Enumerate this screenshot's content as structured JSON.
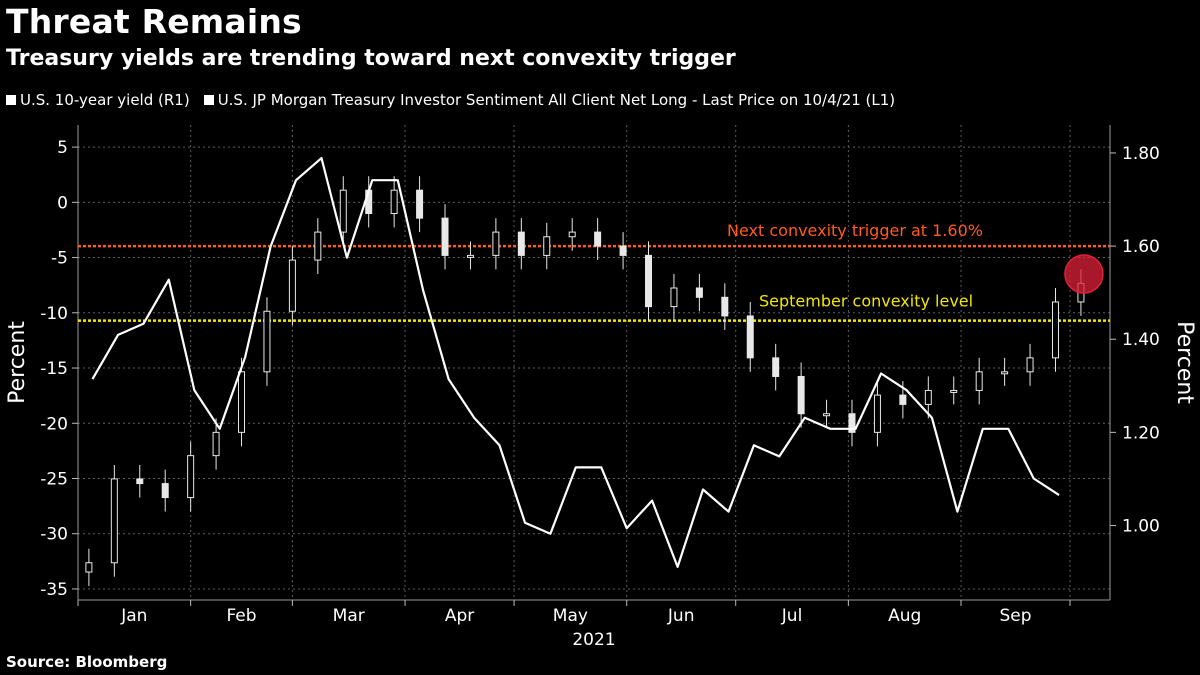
{
  "header": {
    "title": "Threat Remains",
    "subtitle": "Treasury yields are trending toward next convexity trigger"
  },
  "legend": [
    {
      "label": "U.S. 10-year yield (R1)",
      "color": "#ffffff"
    },
    {
      "label": "U.S. JP Morgan Treasury Investor Sentiment All Client Net Long - Last Price on 10/4/21 (L1)",
      "color": "#ffffff"
    }
  ],
  "footer": {
    "source": "Source: Bloomberg"
  },
  "chart_data": {
    "type": "line",
    "xlabel": "2021",
    "x_ticks": [
      "Jan",
      "Feb",
      "Mar",
      "Apr",
      "May",
      "Jun",
      "Jul",
      "Aug",
      "Sep"
    ],
    "left_axis": {
      "label": "Percent",
      "range": [
        -36,
        7
      ],
      "ticks": [
        5,
        0,
        -5,
        -10,
        -15,
        -20,
        -25,
        -30,
        -35
      ]
    },
    "right_axis": {
      "label": "Percent",
      "range": [
        0.84,
        1.86
      ],
      "ticks": [
        "1.80",
        "1.60",
        "1.40",
        "1.20",
        "1.00"
      ]
    },
    "grid": true,
    "legend_position": "top-left",
    "series": [
      {
        "name": "U.S. JP Morgan Treasury Investor Sentiment All Client Net Long - Last Price on 10/4/21 (L1)",
        "style": "line",
        "axis": "left",
        "x": [
          "2021-01-05",
          "2021-01-12",
          "2021-01-19",
          "2021-01-26",
          "2021-02-02",
          "2021-02-09",
          "2021-02-16",
          "2021-02-23",
          "2021-03-02",
          "2021-03-09",
          "2021-03-16",
          "2021-03-23",
          "2021-03-30",
          "2021-04-06",
          "2021-04-13",
          "2021-04-20",
          "2021-04-27",
          "2021-05-04",
          "2021-05-11",
          "2021-05-18",
          "2021-05-25",
          "2021-06-01",
          "2021-06-08",
          "2021-06-15",
          "2021-06-22",
          "2021-06-29",
          "2021-07-06",
          "2021-07-13",
          "2021-07-20",
          "2021-07-27",
          "2021-08-03",
          "2021-08-10",
          "2021-08-17",
          "2021-08-24",
          "2021-08-31",
          "2021-09-07",
          "2021-09-14",
          "2021-09-21",
          "2021-09-28"
        ],
        "values": [
          -16,
          -12,
          -11,
          -7,
          -17,
          -20.5,
          -14,
          -4,
          2,
          4,
          -5,
          2,
          2,
          -8,
          -16,
          -19.5,
          -22,
          -29,
          -30,
          -24,
          -24,
          -29.5,
          -27,
          -33,
          -26,
          -28,
          -22,
          -23,
          -19.5,
          -20.5,
          -20.5,
          -15.5,
          -17,
          -19.5,
          -28,
          -20.5,
          -20.5,
          -25,
          -26.5
        ]
      },
      {
        "name": "U.S. 10-year yield (R1)",
        "style": "candlestick",
        "axis": "right",
        "x": [
          "2021-01-04",
          "2021-01-11",
          "2021-01-18",
          "2021-01-25",
          "2021-02-01",
          "2021-02-08",
          "2021-02-15",
          "2021-02-22",
          "2021-03-01",
          "2021-03-08",
          "2021-03-15",
          "2021-03-22",
          "2021-03-29",
          "2021-04-05",
          "2021-04-12",
          "2021-04-19",
          "2021-04-26",
          "2021-05-03",
          "2021-05-10",
          "2021-05-17",
          "2021-05-24",
          "2021-05-31",
          "2021-06-07",
          "2021-06-14",
          "2021-06-21",
          "2021-06-28",
          "2021-07-05",
          "2021-07-12",
          "2021-07-19",
          "2021-07-26",
          "2021-08-02",
          "2021-08-09",
          "2021-08-16",
          "2021-08-23",
          "2021-08-30",
          "2021-09-06",
          "2021-09-13",
          "2021-09-20",
          "2021-09-27",
          "2021-10-04"
        ],
        "values": [
          0.92,
          1.1,
          1.09,
          1.06,
          1.15,
          1.2,
          1.33,
          1.46,
          1.57,
          1.63,
          1.72,
          1.67,
          1.72,
          1.66,
          1.58,
          1.58,
          1.63,
          1.58,
          1.62,
          1.63,
          1.6,
          1.58,
          1.47,
          1.51,
          1.49,
          1.45,
          1.36,
          1.32,
          1.24,
          1.24,
          1.2,
          1.28,
          1.26,
          1.29,
          1.29,
          1.33,
          1.33,
          1.36,
          1.48,
          1.52
        ]
      }
    ],
    "annotations": [
      {
        "text": "Next convexity trigger at 1.60%",
        "axis": "right",
        "value": 1.6,
        "color": "#ff5a1f"
      },
      {
        "text": "September convexity level",
        "axis": "right",
        "value": 1.44,
        "color": "#f2e600"
      }
    ],
    "highlight": {
      "x": "2021-10-04",
      "y": 1.54,
      "axis": "right",
      "color": "#e0203a"
    }
  }
}
